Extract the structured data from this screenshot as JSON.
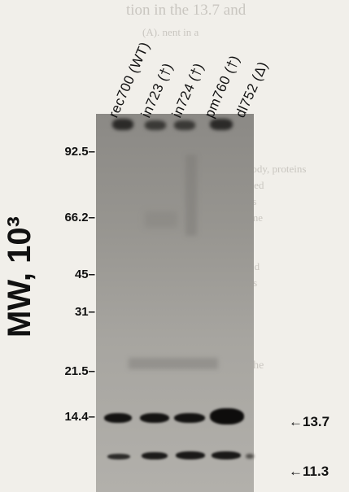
{
  "lane_labels": [
    "rec700 (WT)",
    "in723 (†)",
    "in724 (†)",
    "pm760 (†)",
    "dl752 (Δ)"
  ],
  "axis": {
    "title": "MW, 10³"
  },
  "mw_markers": [
    "92.5–",
    "66.2–",
    "45–",
    "31–",
    "21.5–",
    "14.4–"
  ],
  "band_labels": {
    "upper": "←13.7",
    "lower": "←11.3"
  }
}
